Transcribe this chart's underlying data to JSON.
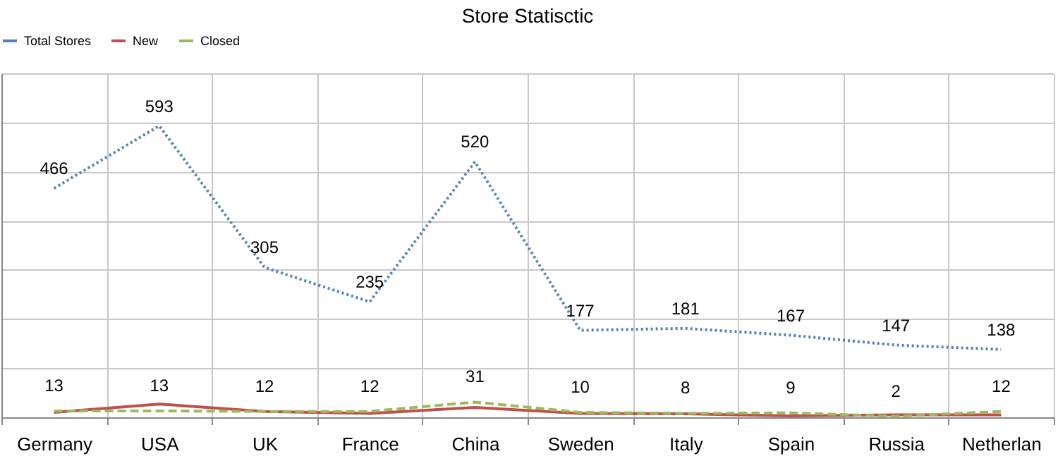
{
  "chart_data": {
    "type": "line",
    "title": "Store Statisctic",
    "categories": [
      "Germany",
      "USA",
      "UK",
      "France",
      "China",
      "Sweden",
      "Italy",
      "Spain",
      "Russia",
      "Netherlan"
    ],
    "series": [
      {
        "name": "Total Stores",
        "color": "#4f81bd",
        "line_style": "dotted",
        "values": [
          466,
          593,
          305,
          235,
          520,
          177,
          181,
          167,
          147,
          138
        ],
        "value_labels": [
          "466",
          "593",
          "305",
          "235",
          "520",
          "177",
          "181",
          "167",
          "147",
          "138"
        ]
      },
      {
        "name": "New",
        "color": "#c0504d",
        "line_style": "solid",
        "values": [
          10,
          27,
          12,
          8,
          20,
          8,
          7,
          3,
          5,
          5
        ]
      },
      {
        "name": "Closed",
        "color": "#9bbb59",
        "line_style": "dashed",
        "values": [
          13,
          13,
          12,
          12,
          31,
          10,
          8,
          9,
          2,
          12
        ],
        "value_labels": [
          "13",
          "13",
          "12",
          "12",
          "31",
          "10",
          "8",
          "9",
          "2",
          "12"
        ]
      }
    ],
    "ylim": [
      0,
      700
    ],
    "yticks": [
      0,
      100,
      200,
      300,
      400,
      500,
      600,
      700
    ],
    "tick_labels": "x",
    "grid": true,
    "legend": "top",
    "marker": "none"
  }
}
